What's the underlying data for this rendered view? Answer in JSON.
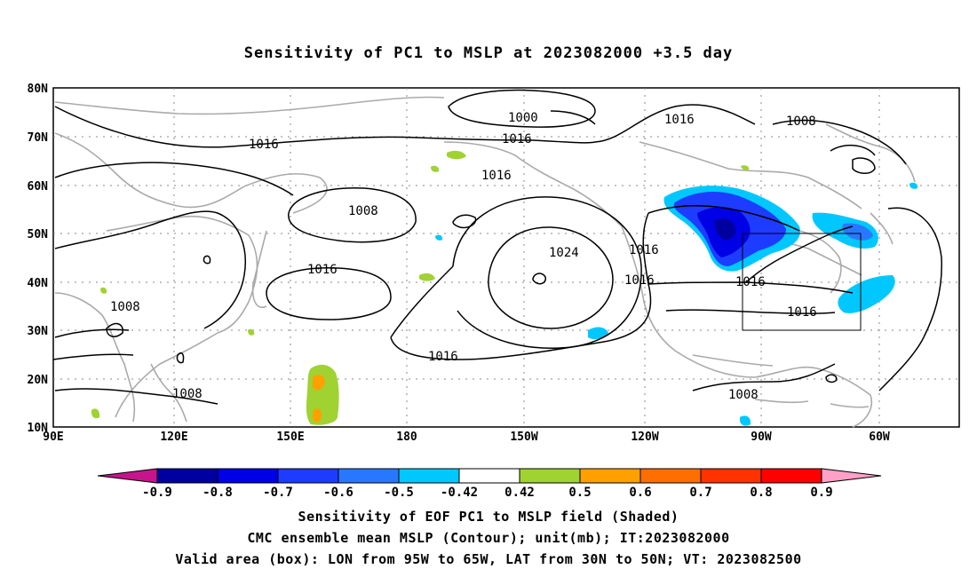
{
  "title": "Sensitivity of PC1 to MSLP at 2023082000 +3.5 day",
  "lat_labels": [
    "80N",
    "70N",
    "60N",
    "50N",
    "40N",
    "30N",
    "20N",
    "10N"
  ],
  "lon_labels": [
    "90E",
    "120E",
    "150E",
    "180",
    "150W",
    "120W",
    "90W",
    "60W"
  ],
  "colorbar": {
    "labels": [
      "-0.9",
      "-0.8",
      "-0.7",
      "-0.6",
      "-0.5",
      "-0.42",
      "0.42",
      "0.5",
      "0.6",
      "0.7",
      "0.8",
      "0.9"
    ],
    "colors": [
      "#c8148c",
      "#0000a0",
      "#0000e6",
      "#1e3cff",
      "#2878ff",
      "#00c8ff",
      "#ffffff",
      "#a0d232",
      "#ffa000",
      "#ff6e00",
      "#ff3200",
      "#ff0000",
      "#ffa0c8"
    ]
  },
  "isobars": {
    "labels": [
      "1000",
      "1016",
      "1016",
      "1008",
      "1016",
      "1008",
      "1016",
      "1024",
      "1016",
      "1016",
      "1016",
      "1008",
      "1016",
      "1016",
      "1016",
      "1008",
      "1008"
    ],
    "line_color": "#000000",
    "coast_color": "#aaaaaa"
  },
  "valid_area": {
    "lon_from": "95W",
    "lon_to": "65W",
    "lat_from": "30N",
    "lat_to": "50N"
  },
  "footer": {
    "line1": "Sensitivity of EOF PC1 to MSLP field (Shaded)",
    "line2": "CMC ensemble mean MSLP (Contour); unit(mb); IT:2023082000",
    "line3": "Valid area (box): LON from 95W to 65W, LAT from 30N to 50N; VT: 2023082500"
  }
}
